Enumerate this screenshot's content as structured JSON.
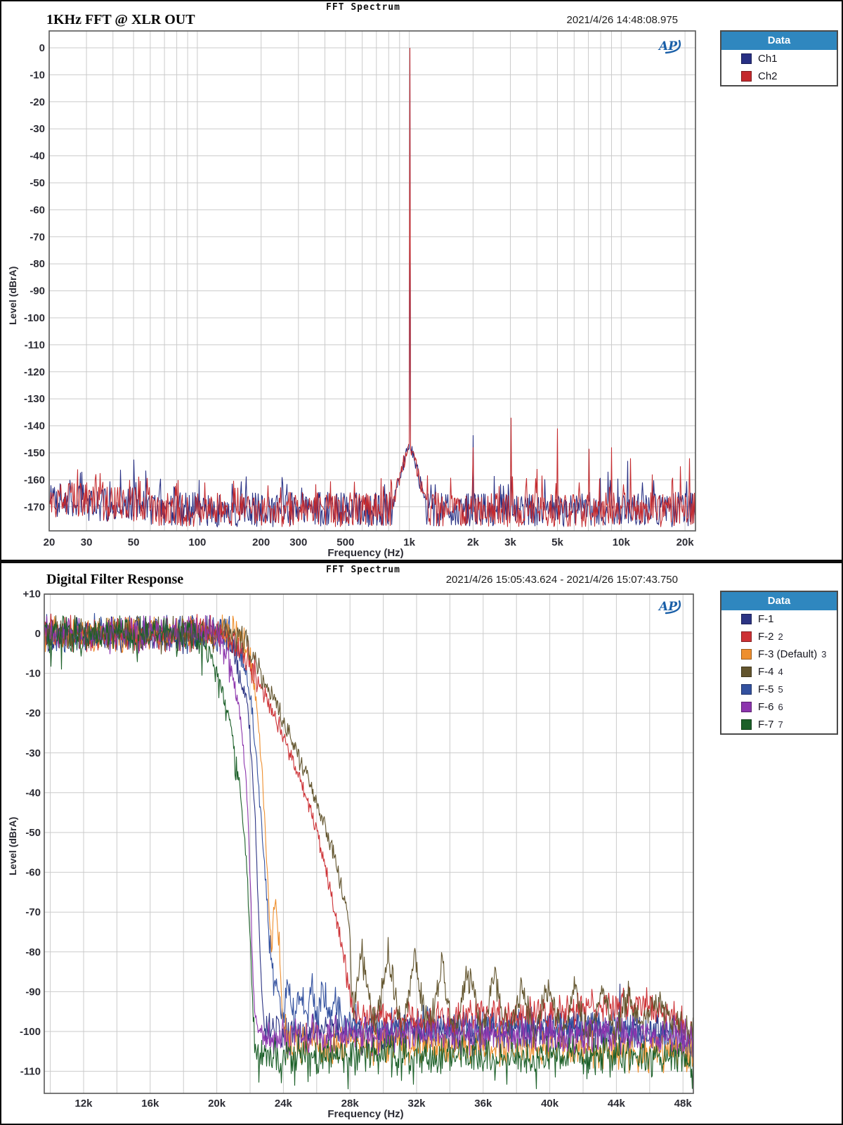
{
  "colors": {
    "legend_header_bg": "#2f87bf",
    "grid": "#cbcbcb",
    "plot_border": "#585858",
    "tick_text": "#2c2c34",
    "ap_logo": "#1a5fa8"
  },
  "chart_data": [
    {
      "type": "line",
      "header": "FFT Spectrum",
      "title": "1KHz FFT @ XLR OUT",
      "timestamp": "2021/4/26 14:48:08.975",
      "xlabel": "Frequency (Hz)",
      "ylabel": "Level (dBrA)",
      "x_scale": "log",
      "xlim": [
        20,
        22400
      ],
      "ylim": [
        -178,
        6
      ],
      "grid": true,
      "legend": {
        "title": "Data",
        "position": "top-right-outside"
      },
      "yticks": [
        0,
        -10,
        -20,
        -30,
        -40,
        -50,
        -60,
        -70,
        -80,
        -90,
        -100,
        -110,
        -120,
        -130,
        -140,
        -150,
        -160,
        -170
      ],
      "xticks": [
        {
          "f": 20,
          "label": "20"
        },
        {
          "f": 30,
          "label": "30"
        },
        {
          "f": 50,
          "label": "50"
        },
        {
          "f": 100,
          "label": "100"
        },
        {
          "f": 200,
          "label": "200"
        },
        {
          "f": 300,
          "label": "300"
        },
        {
          "f": 500,
          "label": "500"
        },
        {
          "f": 1000,
          "label": "1k"
        },
        {
          "f": 2000,
          "label": "2k"
        },
        {
          "f": 3000,
          "label": "3k"
        },
        {
          "f": 5000,
          "label": "5k"
        },
        {
          "f": 10000,
          "label": "10k"
        },
        {
          "f": 20000,
          "label": "20k"
        }
      ],
      "skirt": {
        "center_hz": 1000,
        "base_db": -145,
        "slope_db_per_decade": 300
      },
      "series": [
        {
          "name": "Ch1",
          "color": "#283084",
          "noise_floor_db": -171,
          "noise_spread_db": 13,
          "fundamental": [
            1000,
            0
          ],
          "spurs": [
            [
              25,
              -160
            ],
            [
              50,
              -152.5
            ],
            [
              2000,
              -143.5
            ],
            [
              8600,
              -157
            ],
            [
              10700,
              -153
            ],
            [
              12500,
              -161
            ]
          ]
        },
        {
          "name": "Ch2",
          "color": "#c42a2e",
          "noise_floor_db": -171,
          "noise_spread_db": 13,
          "fundamental": [
            1000,
            0
          ],
          "spurs": [
            [
              30,
              -161
            ],
            [
              150,
              -163
            ],
            [
              2000,
              -148
            ],
            [
              3000,
              -137
            ],
            [
              4000,
              -156
            ],
            [
              5000,
              -141
            ],
            [
              6300,
              -161
            ],
            [
              7000,
              -148.5
            ],
            [
              9000,
              -148
            ],
            [
              11000,
              -152
            ],
            [
              14000,
              -158
            ],
            [
              19000,
              -155
            ],
            [
              21000,
              -152
            ]
          ]
        }
      ]
    },
    {
      "type": "line",
      "header": "FFT Spectrum",
      "title": "Digital Filter Response",
      "timestamp": "2021/4/26 15:05:43.624 - 2021/4/26 15:07:43.750",
      "xlabel": "Frequency (Hz)",
      "ylabel": "Level (dBrA)",
      "x_scale": "linear",
      "xlim_khz": [
        9.6,
        48.6
      ],
      "ylim": [
        -115.5,
        10.2
      ],
      "grid": true,
      "legend": {
        "title": "Data",
        "position": "top-right-outside"
      },
      "yticks": [
        10,
        0,
        -10,
        -20,
        -30,
        -40,
        -50,
        -60,
        -70,
        -80,
        -90,
        -100,
        -110
      ],
      "xticks": [
        {
          "f": 12,
          "label": "12k"
        },
        {
          "f": 16,
          "label": "16k"
        },
        {
          "f": 20,
          "label": "20k"
        },
        {
          "f": 24,
          "label": "24k"
        },
        {
          "f": 28,
          "label": "28k"
        },
        {
          "f": 32,
          "label": "32k"
        },
        {
          "f": 36,
          "label": "36k"
        },
        {
          "f": 40,
          "label": "40k"
        },
        {
          "f": 44,
          "label": "44k"
        },
        {
          "f": 48,
          "label": "48k"
        }
      ],
      "minor_xtick_step_khz": 2,
      "series": [
        {
          "name": "F-1",
          "tag": "",
          "color": "#2c3484",
          "pass_noise_db": 2.8,
          "stop_noise_db": 2.9,
          "spurs": [
            [
              44.2,
              -88
            ]
          ],
          "envelope_khz_db": [
            [
              9.6,
              0
            ],
            [
              20.3,
              0
            ],
            [
              21.1,
              -5
            ],
            [
              21.9,
              -20
            ],
            [
              22.3,
              -45
            ],
            [
              22.55,
              -75
            ],
            [
              22.75,
              -97
            ],
            [
              23.0,
              -100
            ],
            [
              43,
              -100
            ],
            [
              47.7,
              -100
            ],
            [
              48.6,
              -106
            ]
          ]
        },
        {
          "name": "F-2",
          "tag": "2",
          "color": "#cd3236",
          "pass_noise_db": 2.8,
          "stop_noise_db": 2.6,
          "spurs": [],
          "envelope_khz_db": [
            [
              9.6,
              0
            ],
            [
              20.5,
              0
            ],
            [
              21.5,
              -4
            ],
            [
              22.3,
              -10
            ],
            [
              23.4,
              -20
            ],
            [
              24.4,
              -30
            ],
            [
              25.3,
              -40
            ],
            [
              26.0,
              -50
            ],
            [
              26.6,
              -60
            ],
            [
              27.1,
              -70
            ],
            [
              27.6,
              -80
            ],
            [
              28.0,
              -90
            ],
            [
              28.3,
              -96
            ],
            [
              33,
              -97
            ],
            [
              40,
              -95.5
            ],
            [
              44,
              -93
            ],
            [
              46.2,
              -93.5
            ],
            [
              47.6,
              -96
            ],
            [
              48.6,
              -102
            ]
          ]
        },
        {
          "name": "F-3",
          "tag": "3",
          "color": "#ee8f2e",
          "pass_noise_db": 2.8,
          "stop_noise_db": 3.2,
          "spurs": [],
          "envelope_khz_db": [
            [
              9.6,
              0
            ],
            [
              21.3,
              0
            ],
            [
              21.9,
              -5
            ],
            [
              22.4,
              -18
            ],
            [
              22.8,
              -40
            ],
            [
              23.05,
              -62
            ],
            [
              23.25,
              -78
            ],
            [
              23.55,
              -66
            ],
            [
              23.75,
              -80
            ],
            [
              23.95,
              -98
            ],
            [
              24.3,
              -103
            ],
            [
              48.6,
              -105
            ]
          ]
        },
        {
          "name": "F-4",
          "tag": "4",
          "color": "#63552e",
          "pass_noise_db": 2.8,
          "stop_noise_db": 2.7,
          "spurs": [],
          "envelope_khz_db": [
            [
              9.6,
              0
            ],
            [
              21.2,
              0
            ],
            [
              22.3,
              -7
            ],
            [
              23.8,
              -20
            ],
            [
              24.8,
              -30
            ],
            [
              25.8,
              -40
            ],
            [
              26.6,
              -50
            ],
            [
              27.3,
              -60
            ],
            [
              27.9,
              -72
            ],
            [
              28.2,
              -95
            ],
            [
              28.7,
              -80
            ],
            [
              29.5,
              -99
            ],
            [
              30.3,
              -81
            ],
            [
              31.1,
              -100
            ],
            [
              31.9,
              -82.5
            ],
            [
              32.7,
              -100
            ],
            [
              33.5,
              -84
            ],
            [
              34.3,
              -101
            ],
            [
              35.1,
              -85
            ],
            [
              35.9,
              -101
            ],
            [
              36.7,
              -86
            ],
            [
              37.5,
              -101
            ],
            [
              38.3,
              -87
            ],
            [
              39.1,
              -102
            ],
            [
              39.9,
              -88
            ],
            [
              40.7,
              -102
            ],
            [
              41.5,
              -89
            ],
            [
              42.3,
              -102
            ],
            [
              43.1,
              -89.5
            ],
            [
              43.9,
              -101
            ],
            [
              44.7,
              -90
            ],
            [
              45.5,
              -99
            ],
            [
              46.3,
              -92
            ],
            [
              47.1,
              -97
            ],
            [
              48.6,
              -100
            ]
          ]
        },
        {
          "name": "F-5",
          "tag": "5",
          "color": "#33519f",
          "pass_noise_db": 2.8,
          "stop_noise_db": 2.9,
          "spurs": [],
          "envelope_khz_db": [
            [
              9.6,
              0
            ],
            [
              20.7,
              0
            ],
            [
              21.5,
              -5
            ],
            [
              22.1,
              -18
            ],
            [
              22.55,
              -40
            ],
            [
              22.9,
              -60
            ],
            [
              23.2,
              -80
            ],
            [
              23.45,
              -89
            ],
            [
              23.6,
              -88.5
            ],
            [
              23.95,
              -96
            ],
            [
              24.3,
              -89
            ],
            [
              24.65,
              -96.5
            ],
            [
              25.0,
              -89
            ],
            [
              25.35,
              -97
            ],
            [
              25.7,
              -89.5
            ],
            [
              26.05,
              -97
            ],
            [
              26.4,
              -90
            ],
            [
              26.75,
              -97.5
            ],
            [
              27.1,
              -91
            ],
            [
              27.45,
              -97
            ],
            [
              27.8,
              -98
            ],
            [
              34,
              -99
            ],
            [
              44,
              -99
            ],
            [
              48.6,
              -103
            ]
          ]
        },
        {
          "name": "F-6",
          "tag": "6",
          "color": "#8c35ad",
          "pass_noise_db": 2.8,
          "stop_noise_db": 3.0,
          "spurs": [],
          "envelope_khz_db": [
            [
              9.6,
              0
            ],
            [
              19.9,
              0
            ],
            [
              20.7,
              -6
            ],
            [
              21.4,
              -20
            ],
            [
              21.8,
              -40
            ],
            [
              22.05,
              -65
            ],
            [
              22.25,
              -95
            ],
            [
              22.5,
              -101
            ],
            [
              48.0,
              -101
            ],
            [
              48.6,
              -104
            ]
          ]
        },
        {
          "name": "F-7",
          "tag": "7",
          "color": "#1c6029",
          "pass_noise_db": 2.8,
          "stop_noise_db": 3.0,
          "deep_dips": true,
          "spurs": [],
          "envelope_khz_db": [
            [
              9.6,
              0
            ],
            [
              18.7,
              0
            ],
            [
              19.5,
              -5
            ],
            [
              20.3,
              -14
            ],
            [
              20.9,
              -25
            ],
            [
              21.4,
              -40
            ],
            [
              21.8,
              -58
            ],
            [
              22.05,
              -80
            ],
            [
              22.3,
              -106
            ],
            [
              47.9,
              -106
            ],
            [
              48.6,
              -110
            ]
          ]
        }
      ]
    }
  ]
}
